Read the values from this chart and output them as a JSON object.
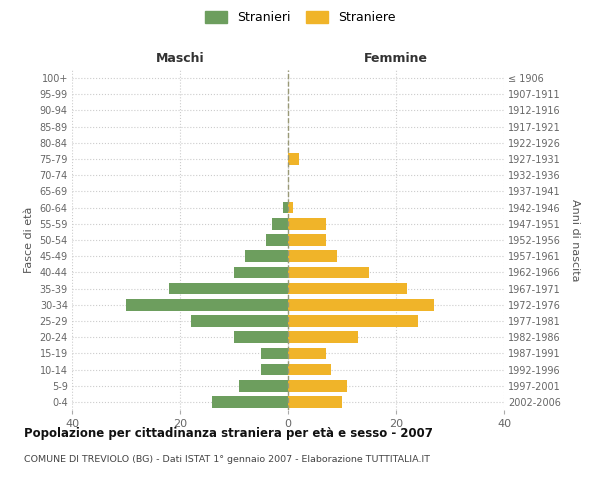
{
  "age_groups": [
    "0-4",
    "5-9",
    "10-14",
    "15-19",
    "20-24",
    "25-29",
    "30-34",
    "35-39",
    "40-44",
    "45-49",
    "50-54",
    "55-59",
    "60-64",
    "65-69",
    "70-74",
    "75-79",
    "80-84",
    "85-89",
    "90-94",
    "95-99",
    "100+"
  ],
  "birth_years": [
    "2002-2006",
    "1997-2001",
    "1992-1996",
    "1987-1991",
    "1982-1986",
    "1977-1981",
    "1972-1976",
    "1967-1971",
    "1962-1966",
    "1957-1961",
    "1952-1956",
    "1947-1951",
    "1942-1946",
    "1937-1941",
    "1932-1936",
    "1927-1931",
    "1922-1926",
    "1917-1921",
    "1912-1916",
    "1907-1911",
    "≤ 1906"
  ],
  "males": [
    14,
    9,
    5,
    5,
    10,
    18,
    30,
    22,
    10,
    8,
    4,
    3,
    1,
    0,
    0,
    0,
    0,
    0,
    0,
    0,
    0
  ],
  "females": [
    10,
    11,
    8,
    7,
    13,
    24,
    27,
    22,
    15,
    9,
    7,
    7,
    1,
    0,
    0,
    2,
    0,
    0,
    0,
    0,
    0
  ],
  "male_color": "#6d9e5e",
  "female_color": "#f0b429",
  "background_color": "#ffffff",
  "grid_color": "#cccccc",
  "xlabel_left": "Maschi",
  "xlabel_right": "Femmine",
  "ylabel": "Fasce di età",
  "ylabel_right": "Anni di nascita",
  "xlim": 40,
  "title": "Popolazione per cittadinanza straniera per età e sesso - 2007",
  "subtitle": "COMUNE DI TREVIOLO (BG) - Dati ISTAT 1° gennaio 2007 - Elaborazione TUTTITALIA.IT",
  "legend_stranieri": "Stranieri",
  "legend_straniere": "Straniere",
  "center_line_color": "#999977"
}
